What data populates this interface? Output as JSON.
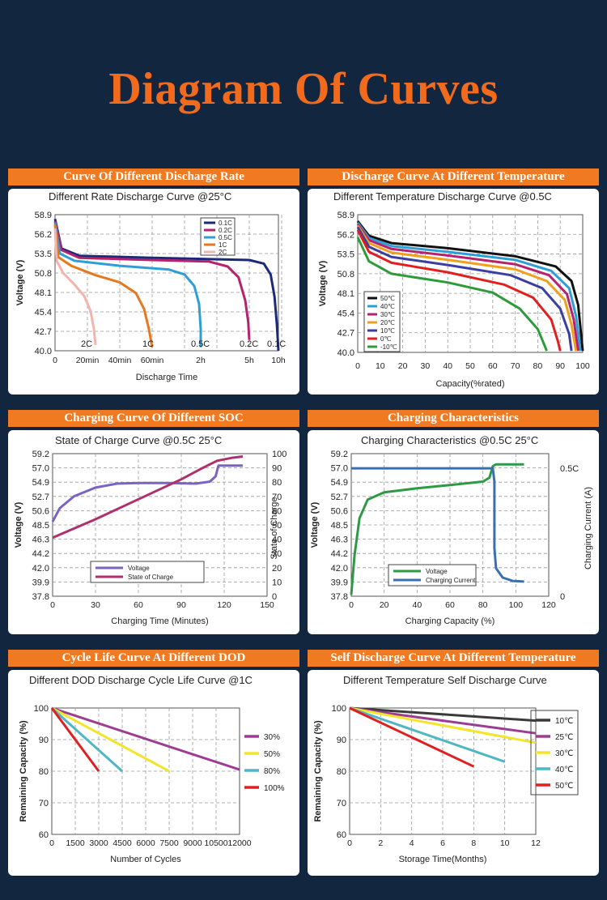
{
  "page": {
    "title": "Diagram Of Curves"
  },
  "panels": [
    {
      "header": "Curve Of Different Discharge Rate"
    },
    {
      "header": "Discharge Curve At Different Temperature"
    },
    {
      "header": "Charging Curve Of Different SOC"
    },
    {
      "header": "Charging Characteristics"
    },
    {
      "header": "Cycle Life Curve At Different DOD"
    },
    {
      "header": "Self Discharge Curve At Different Temperature"
    }
  ],
  "chart_data": [
    {
      "type": "line",
      "title": "Different Rate Discharge Curve @25°C",
      "xlabel": "Discharge Time",
      "ylabel": "Voltage (V)",
      "xlim": [
        0,
        600
      ],
      "ylim": [
        40.0,
        58.9
      ],
      "x_ticks": [
        {
          "v": 0,
          "label": "0"
        },
        {
          "v": 20,
          "label": "20min"
        },
        {
          "v": 40,
          "label": "40min"
        },
        {
          "v": 60,
          "label": "60min"
        },
        {
          "v": 120,
          "label": "2h"
        },
        {
          "v": 300,
          "label": "5h"
        },
        {
          "v": 600,
          "label": "10h"
        }
      ],
      "y_ticks": [
        "40.0",
        "42.7",
        "45.4",
        "48.1",
        "50.8",
        "53.5",
        "56.2",
        "58.9"
      ],
      "x_grid": [
        40,
        80,
        120,
        160,
        200,
        240,
        280,
        320
      ],
      "legend_position": "top-right",
      "legend": [
        "0.1C",
        "0.2C",
        "0.5C",
        "1C",
        "2C"
      ],
      "series": [
        {
          "name": "0.1C",
          "color": "#1a2a78",
          "label": "0.1C",
          "points": [
            [
              0,
              58.3
            ],
            [
              4,
              54.2
            ],
            [
              15,
              53.2
            ],
            [
              60,
              52.9
            ],
            [
              300,
              52.6
            ],
            [
              450,
              52.1
            ],
            [
              520,
              50.6
            ],
            [
              560,
              47.5
            ],
            [
              585,
              43.5
            ],
            [
              600,
              40.0
            ]
          ]
        },
        {
          "name": "0.2C",
          "color": "#b5226e",
          "label": "0.2C",
          "points": [
            [
              0,
              58.0
            ],
            [
              4,
              54.0
            ],
            [
              15,
              52.9
            ],
            [
              60,
              52.6
            ],
            [
              150,
              52.4
            ],
            [
              220,
              51.7
            ],
            [
              260,
              50.2
            ],
            [
              285,
              47.0
            ],
            [
              296,
              44.0
            ],
            [
              300,
              41.5
            ]
          ]
        },
        {
          "name": "0.5C",
          "color": "#2e9fd6",
          "label": "0.5C",
          "points": [
            [
              0,
              57.8
            ],
            [
              3,
              53.5
            ],
            [
              12,
              52.5
            ],
            [
              40,
              51.8
            ],
            [
              80,
              51.3
            ],
            [
              100,
              50.6
            ],
            [
              112,
              49.0
            ],
            [
              118,
              46.5
            ],
            [
              120,
              43.0
            ],
            [
              120,
              40.5
            ]
          ]
        },
        {
          "name": "1C",
          "color": "#e8771e",
          "label": "1C",
          "points": [
            [
              0,
              57.5
            ],
            [
              2,
              53.0
            ],
            [
              10,
              51.8
            ],
            [
              25,
              50.5
            ],
            [
              40,
              49.5
            ],
            [
              50,
              48.0
            ],
            [
              55,
              45.8
            ],
            [
              58,
              43.0
            ],
            [
              60,
              40.5
            ]
          ]
        },
        {
          "name": "2C",
          "color": "#f2b5ad",
          "label": "2C",
          "points": [
            [
              0,
              57.0
            ],
            [
              1,
              52.5
            ],
            [
              5,
              50.8
            ],
            [
              12,
              49.2
            ],
            [
              18,
              47.6
            ],
            [
              22,
              45.5
            ],
            [
              24,
              43.0
            ],
            [
              25,
              40.8
            ]
          ]
        }
      ]
    },
    {
      "type": "line",
      "title": "Different Temperature Discharge Curve @0.5C",
      "xlabel": "Capacity(%rated)",
      "ylabel": "Voltage (V)",
      "xlim": [
        0,
        100
      ],
      "ylim": [
        40.0,
        58.9
      ],
      "x_ticks": [
        "0",
        "10",
        "20",
        "30",
        "40",
        "50",
        "60",
        "70",
        "80",
        "90",
        "100"
      ],
      "y_ticks": [
        "40.0",
        "42.7",
        "45.4",
        "48.1",
        "50.8",
        "53.5",
        "56.2",
        "58.9"
      ],
      "legend_position": "bottom-left",
      "legend": [
        "50℃",
        "40℃",
        "30℃",
        "20℃",
        "10℃",
        "0℃",
        "-10℃"
      ],
      "series": [
        {
          "name": "50℃",
          "color": "#111111",
          "points": [
            [
              0,
              58.0
            ],
            [
              5,
              56.0
            ],
            [
              15,
              55.0
            ],
            [
              40,
              54.3
            ],
            [
              70,
              53.2
            ],
            [
              88,
              51.8
            ],
            [
              95,
              49.8
            ],
            [
              98,
              46.5
            ],
            [
              100,
              40.2
            ]
          ]
        },
        {
          "name": "40℃",
          "color": "#2e9fd6",
          "points": [
            [
              0,
              57.8
            ],
            [
              5,
              55.7
            ],
            [
              15,
              54.6
            ],
            [
              40,
              53.8
            ],
            [
              70,
              52.7
            ],
            [
              86,
              51.2
            ],
            [
              94,
              48.8
            ],
            [
              97,
              45.0
            ],
            [
              99,
              40.2
            ]
          ]
        },
        {
          "name": "30℃",
          "color": "#b5226e",
          "points": [
            [
              0,
              57.6
            ],
            [
              5,
              55.4
            ],
            [
              15,
              54.2
            ],
            [
              40,
              53.3
            ],
            [
              70,
              52.1
            ],
            [
              85,
              50.6
            ],
            [
              93,
              48.0
            ],
            [
              96,
              44.5
            ],
            [
              98,
              40.2
            ]
          ]
        },
        {
          "name": "20℃",
          "color": "#f0a020",
          "points": [
            [
              0,
              57.4
            ],
            [
              5,
              55.0
            ],
            [
              15,
              53.7
            ],
            [
              40,
              52.7
            ],
            [
              70,
              51.4
            ],
            [
              84,
              49.8
            ],
            [
              92,
              47.2
            ],
            [
              95,
              43.8
            ],
            [
              97,
              40.2
            ]
          ]
        },
        {
          "name": "10℃",
          "color": "#3a3fa0",
          "points": [
            [
              0,
              57.2
            ],
            [
              5,
              54.5
            ],
            [
              15,
              53.1
            ],
            [
              40,
              52.0
            ],
            [
              68,
              50.6
            ],
            [
              82,
              48.8
            ],
            [
              90,
              46.0
            ],
            [
              94,
              42.5
            ],
            [
              95,
              40.2
            ]
          ]
        },
        {
          "name": "0℃",
          "color": "#e02020",
          "points": [
            [
              0,
              56.8
            ],
            [
              5,
              53.8
            ],
            [
              15,
              52.3
            ],
            [
              40,
              51.0
            ],
            [
              65,
              49.3
            ],
            [
              78,
              47.5
            ],
            [
              86,
              44.5
            ],
            [
              89,
              41.5
            ],
            [
              90,
              40.2
            ]
          ]
        },
        {
          "name": "-10℃",
          "color": "#2c9c3a",
          "points": [
            [
              0,
              55.8
            ],
            [
              5,
              52.5
            ],
            [
              15,
              50.8
            ],
            [
              40,
              49.6
            ],
            [
              60,
              48.2
            ],
            [
              72,
              46.0
            ],
            [
              80,
              43.2
            ],
            [
              83,
              41.0
            ],
            [
              84,
              40.2
            ]
          ]
        }
      ]
    },
    {
      "type": "line",
      "title": "State of Charge Curve @0.5C 25°C",
      "xlabel": "Charging Time (Minutes)",
      "ylabel": "Voltage (V)",
      "y2label": "State of Charge",
      "xlim": [
        0,
        150
      ],
      "ylim": [
        37.8,
        59.2
      ],
      "y2lim": [
        0,
        100
      ],
      "x_ticks": [
        "0",
        "30",
        "60",
        "90",
        "120",
        "150"
      ],
      "y_ticks": [
        "37.8",
        "39.9",
        "42.0",
        "44.2",
        "46.3",
        "48.5",
        "50.6",
        "52.7",
        "54.9",
        "57.0",
        "59.2"
      ],
      "y2_ticks": [
        "0",
        "10",
        "20",
        "30",
        "40",
        "50",
        "60",
        "70",
        "80",
        "90",
        "100"
      ],
      "legend_position": "bottom-center",
      "legend": [
        "Voltage",
        "State of Charge"
      ],
      "series": [
        {
          "name": "Voltage",
          "color": "#7b63c4",
          "axis": "left",
          "points": [
            [
              0,
              49.0
            ],
            [
              5,
              51.0
            ],
            [
              15,
              52.8
            ],
            [
              30,
              54.1
            ],
            [
              45,
              54.7
            ],
            [
              60,
              54.8
            ],
            [
              80,
              54.8
            ],
            [
              100,
              54.7
            ],
            [
              110,
              55.0
            ],
            [
              114,
              55.8
            ],
            [
              116,
              57.4
            ],
            [
              125,
              57.4
            ],
            [
              133,
              57.4
            ]
          ]
        },
        {
          "name": "State of Charge",
          "color": "#b0306e",
          "axis": "right",
          "points": [
            [
              0,
              41
            ],
            [
              30,
              54
            ],
            [
              60,
              68
            ],
            [
              90,
              82
            ],
            [
              105,
              90
            ],
            [
              115,
              95
            ],
            [
              125,
              97
            ],
            [
              133,
              98
            ]
          ]
        }
      ]
    },
    {
      "type": "line",
      "title": "Charging Characteristics @0.5C 25°C",
      "xlabel": "Charging Capacity (%)",
      "ylabel": "Voltage (V)",
      "y2label": "Charging Current (A)",
      "xlim": [
        0,
        120
      ],
      "ylim": [
        37.8,
        59.2
      ],
      "x_ticks": [
        "0",
        "20",
        "40",
        "60",
        "80",
        "100",
        "120"
      ],
      "y_ticks": [
        "37.8",
        "39.9",
        "42.0",
        "44.2",
        "46.3",
        "48.5",
        "50.6",
        "52.7",
        "54.9",
        "57.0",
        "59.2"
      ],
      "y2_ticks": [
        "0.5C",
        "0"
      ],
      "legend_position": "bottom-center",
      "legend": [
        "Voltage",
        "Charging Current"
      ],
      "series": [
        {
          "name": "Voltage",
          "color": "#2e9a46",
          "points": [
            [
              0,
              38.0
            ],
            [
              2,
              44.0
            ],
            [
              5,
              49.5
            ],
            [
              10,
              52.3
            ],
            [
              20,
              53.4
            ],
            [
              40,
              54.0
            ],
            [
              60,
              54.5
            ],
            [
              80,
              55.0
            ],
            [
              84,
              55.6
            ],
            [
              86,
              57.3
            ],
            [
              88,
              57.6
            ],
            [
              105,
              57.6
            ]
          ]
        },
        {
          "name": "Charging Current",
          "color": "#3a6fb0",
          "points": [
            [
              0,
              57.0
            ],
            [
              20,
              57.0
            ],
            [
              40,
              57.0
            ],
            [
              60,
              57.0
            ],
            [
              80,
              57.0
            ],
            [
              86,
              57.0
            ],
            [
              87,
              55.0
            ],
            [
              87,
              45.0
            ],
            [
              88,
              42.0
            ],
            [
              92,
              40.6
            ],
            [
              98,
              40.1
            ],
            [
              105,
              40.0
            ]
          ]
        }
      ]
    },
    {
      "type": "line",
      "title": "Different DOD Discharge Cycle Life Curve @1C",
      "xlabel": "Number of Cycles",
      "ylabel": "Remaining Capacity (%)",
      "xlim": [
        0,
        12000
      ],
      "ylim": [
        60,
        100
      ],
      "x_ticks": [
        "0",
        "1500",
        "3000",
        "4500",
        "6000",
        "7500",
        "9000",
        "10500",
        "12000"
      ],
      "y_ticks": [
        "60",
        "70",
        "80",
        "90",
        "100"
      ],
      "legend_position": "right",
      "legend": [
        "30%",
        "50%",
        "80%",
        "100%"
      ],
      "series": [
        {
          "name": "30%",
          "color": "#9b3d93",
          "points": [
            [
              0,
              100
            ],
            [
              12000,
              80.5
            ]
          ]
        },
        {
          "name": "50%",
          "color": "#f3e52d",
          "points": [
            [
              0,
              100
            ],
            [
              7500,
              80
            ]
          ]
        },
        {
          "name": "80%",
          "color": "#4fb6c4",
          "points": [
            [
              0,
              100
            ],
            [
              4500,
              80
            ]
          ]
        },
        {
          "name": "100%",
          "color": "#e02020",
          "points": [
            [
              0,
              100
            ],
            [
              3000,
              80
            ]
          ]
        }
      ]
    },
    {
      "type": "line",
      "title": "Different Temperature Self Discharge Curve",
      "xlabel": "Storage Time(Months)",
      "ylabel": "Remaining Capacity (%)",
      "xlim": [
        0,
        12
      ],
      "ylim": [
        60,
        100
      ],
      "x_ticks": [
        "0",
        "2",
        "4",
        "6",
        "8",
        "10",
        "12"
      ],
      "y_ticks": [
        "60",
        "70",
        "80",
        "90",
        "100"
      ],
      "legend_position": "right",
      "legend": [
        "10℃",
        "25℃",
        "30℃",
        "40℃",
        "50℃"
      ],
      "series": [
        {
          "name": "10℃",
          "color": "#3a3a3a",
          "points": [
            [
              0,
              100
            ],
            [
              12,
              96
            ]
          ]
        },
        {
          "name": "25℃",
          "color": "#9b3d93",
          "points": [
            [
              0,
              100
            ],
            [
              12,
              92
            ]
          ]
        },
        {
          "name": "30℃",
          "color": "#f3e52d",
          "points": [
            [
              0,
              100
            ],
            [
              12,
              89
            ]
          ]
        },
        {
          "name": "40℃",
          "color": "#4fb6c4",
          "points": [
            [
              0,
              100
            ],
            [
              10,
              83
            ]
          ]
        },
        {
          "name": "50℃",
          "color": "#e02020",
          "points": [
            [
              0,
              100
            ],
            [
              8,
              81.5
            ]
          ]
        }
      ]
    }
  ]
}
